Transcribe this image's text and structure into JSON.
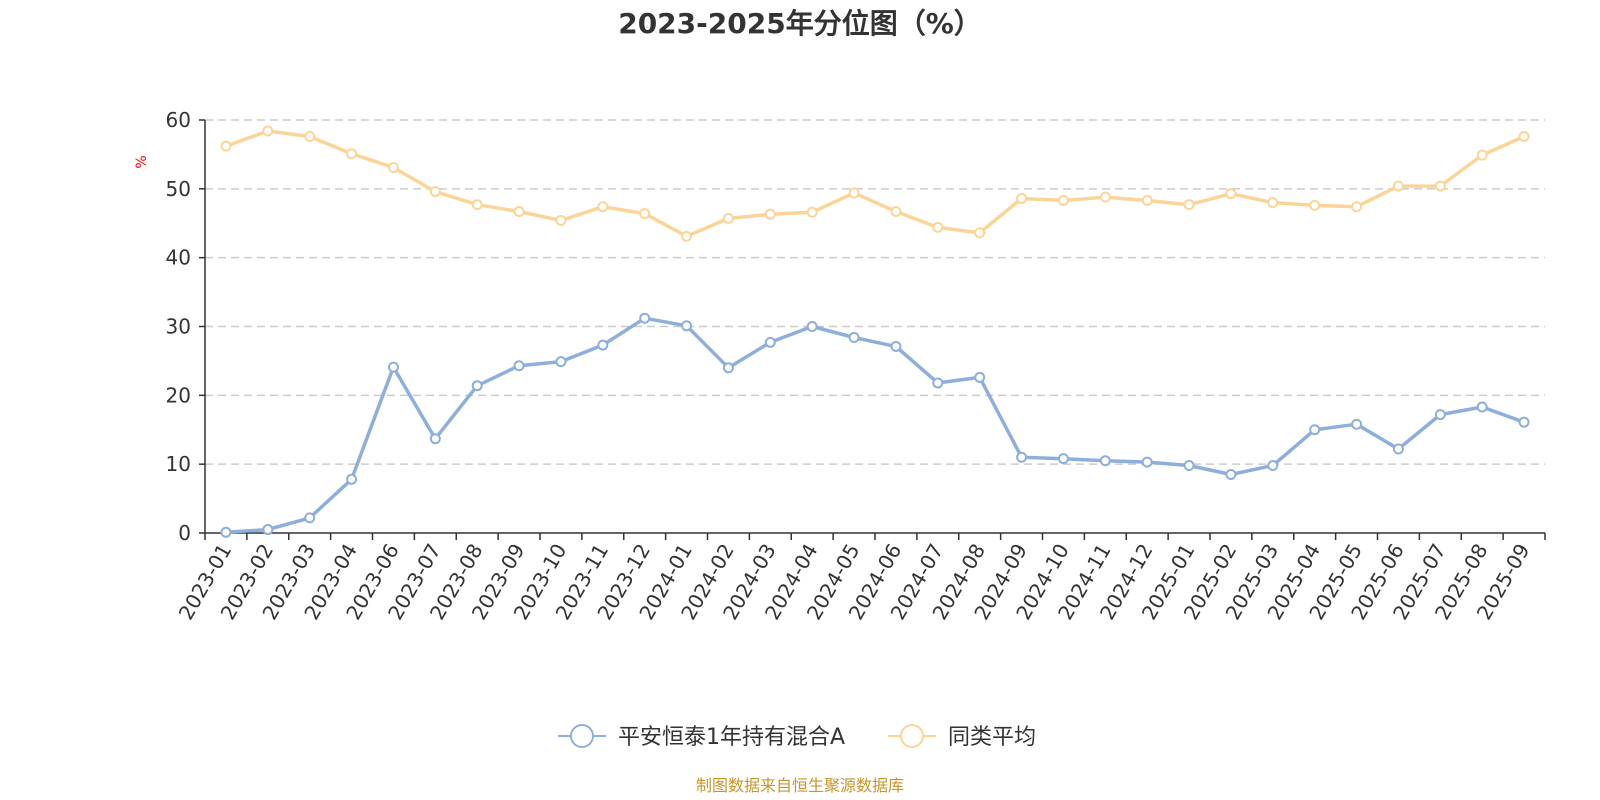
{
  "chart_data": {
    "type": "line",
    "title": "2023-2025年分位图（%）",
    "ylabel": "%",
    "xlabel": "",
    "ylim": [
      0,
      60
    ],
    "yticks": [
      "0",
      "10",
      "20",
      "30",
      "40",
      "50",
      "60"
    ],
    "grid": "horizontal-dashed",
    "legend_position": "bottom",
    "categories": [
      "2023-01",
      "2023-02",
      "2023-03",
      "2023-04",
      "2023-06",
      "2023-07",
      "2023-08",
      "2023-09",
      "2023-10",
      "2023-11",
      "2023-12",
      "2024-01",
      "2024-02",
      "2024-03",
      "2024-04",
      "2024-05",
      "2024-06",
      "2024-07",
      "2024-08",
      "2024-09",
      "2024-10",
      "2024-11",
      "2024-12",
      "2025-01",
      "2025-02",
      "2025-03",
      "2025-04",
      "2025-05",
      "2025-06",
      "2025-07",
      "2025-08",
      "2025-09"
    ],
    "series": [
      {
        "name": "平安恒泰1年持有混合A",
        "color": "#8eaedb",
        "values": [
          0.1,
          0.5,
          2.2,
          7.8,
          24.1,
          13.7,
          21.4,
          24.3,
          24.9,
          27.3,
          31.2,
          30.1,
          24.0,
          27.7,
          30.0,
          28.4,
          27.1,
          21.8,
          22.6,
          11.0,
          10.8,
          10.5,
          10.3,
          9.8,
          8.5,
          9.8,
          15.0,
          15.8,
          12.2,
          17.2,
          18.3,
          16.1
        ]
      },
      {
        "name": "同类平均",
        "color": "#fbd597",
        "values": [
          56.2,
          58.4,
          57.6,
          55.1,
          53.1,
          49.6,
          47.7,
          46.7,
          45.4,
          47.4,
          46.4,
          43.1,
          45.7,
          46.3,
          46.6,
          49.4,
          46.7,
          44.4,
          43.6,
          48.6,
          48.3,
          48.8,
          48.3,
          47.7,
          49.3,
          48.0,
          47.6,
          47.4,
          50.4,
          50.4,
          54.9,
          57.6
        ]
      }
    ]
  },
  "source": "制图数据来自恒生聚源数据库"
}
